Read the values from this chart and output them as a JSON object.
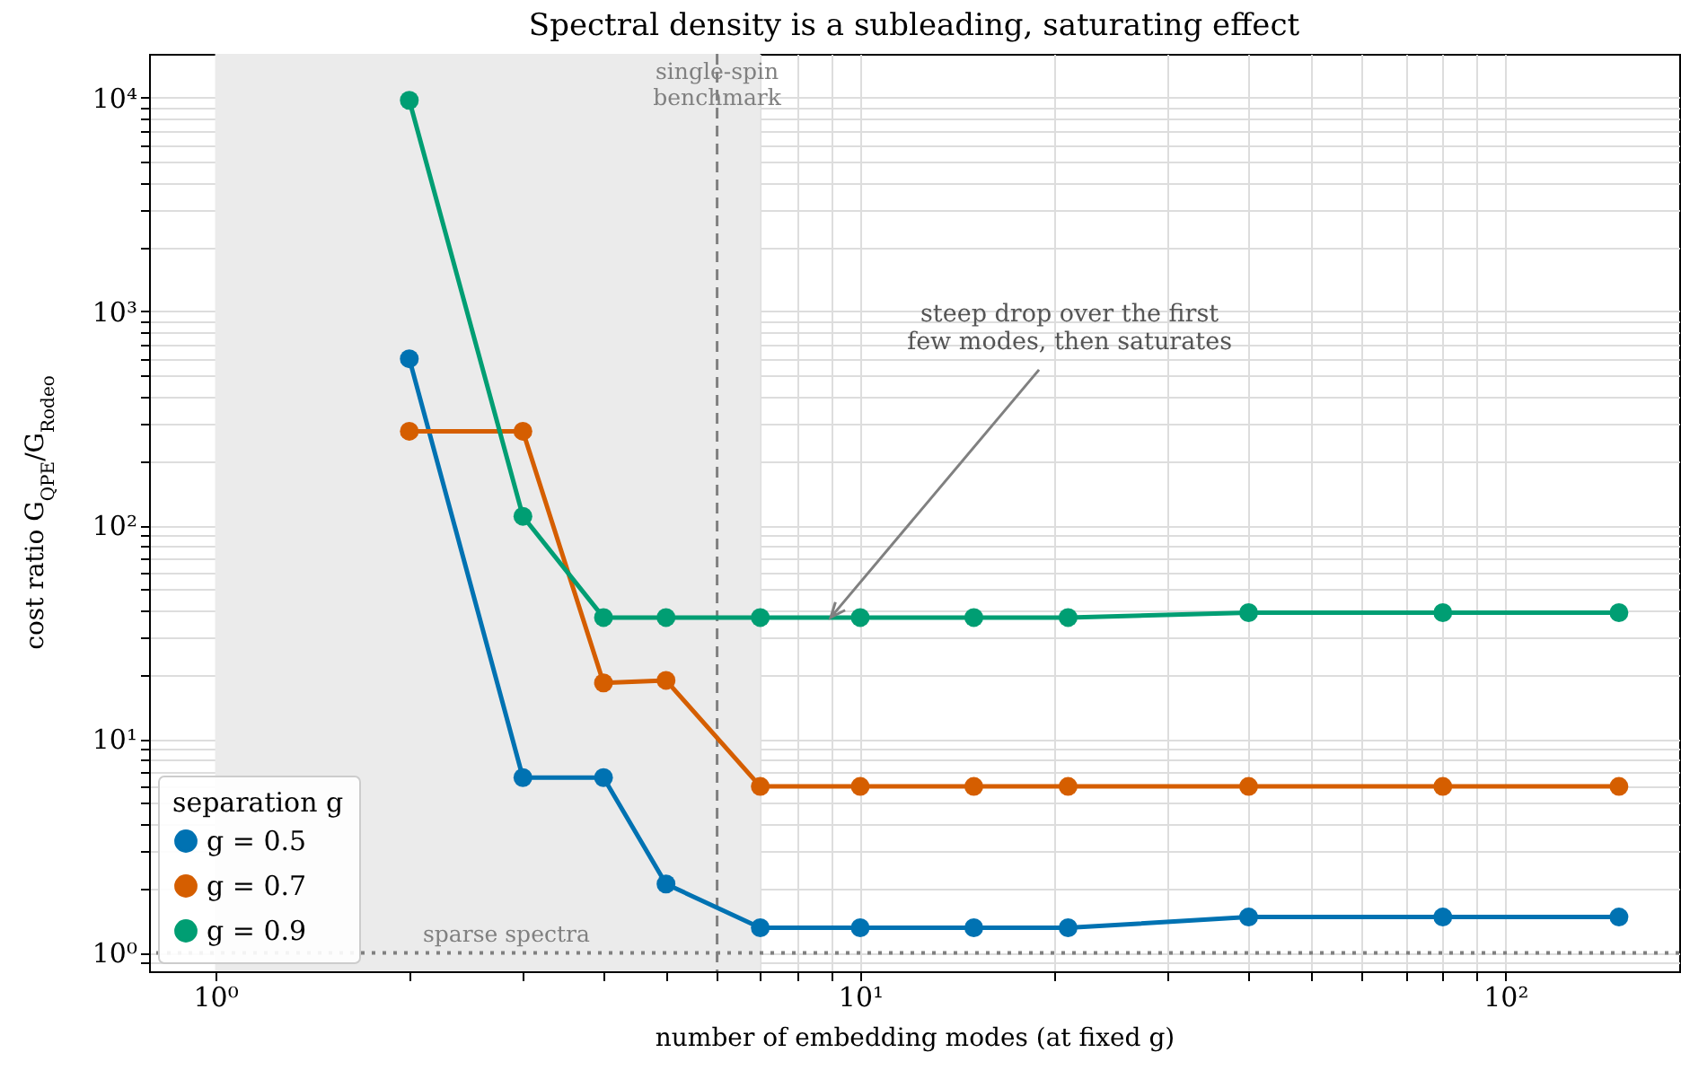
{
  "chart_data": {
    "type": "line",
    "title": "Spectral density is a subleading, saturating effect",
    "xlabel": "number of embedding modes (at fixed g)",
    "ylabel": "cost ratio G$_{QPE}$/G$_{Rodeo}$",
    "legend_title": "separation g",
    "x": [
      2,
      3,
      4,
      5,
      7,
      10,
      15,
      21,
      40,
      80,
      150
    ],
    "series": [
      {
        "name": "g = 0.5",
        "color": "#0072b2",
        "values": [
          600,
          6.6,
          6.6,
          2.1,
          1.31,
          1.31,
          1.31,
          1.31,
          1.47,
          1.47,
          1.47
        ]
      },
      {
        "name": "g = 0.7",
        "color": "#d55e00",
        "values": [
          275,
          275,
          18.3,
          18.8,
          6.0,
          6.0,
          6.0,
          6.0,
          6.0,
          6.0,
          6.0
        ]
      },
      {
        "name": "g = 0.9",
        "color": "#009e73",
        "values": [
          9700,
          110,
          37,
          37,
          37,
          37,
          37,
          37,
          39,
          39,
          39
        ]
      }
    ],
    "log": "xy",
    "xlim": [
      0.79,
      186
    ],
    "ylim": [
      0.82,
      16000
    ],
    "xticks": [
      {
        "value": 1,
        "label": "10⁰"
      },
      {
        "value": 2,
        "label": null
      },
      {
        "value": 3,
        "label": null
      },
      {
        "value": 4,
        "label": null
      },
      {
        "value": 5,
        "label": null
      },
      {
        "value": 6,
        "label": null
      },
      {
        "value": 7,
        "label": null
      },
      {
        "value": 8,
        "label": null
      },
      {
        "value": 9,
        "label": null
      },
      {
        "value": 10,
        "label": "10¹"
      },
      {
        "value": 20,
        "label": null
      },
      {
        "value": 30,
        "label": null
      },
      {
        "value": 40,
        "label": null
      },
      {
        "value": 50,
        "label": null
      },
      {
        "value": 60,
        "label": null
      },
      {
        "value": 70,
        "label": null
      },
      {
        "value": 80,
        "label": null
      },
      {
        "value": 90,
        "label": null
      },
      {
        "value": 100,
        "label": "10²"
      }
    ],
    "yticks": [
      {
        "value": 0.9,
        "label": null
      },
      {
        "value": 1,
        "label": "10⁰"
      },
      {
        "value": 2,
        "label": null
      },
      {
        "value": 3,
        "label": null
      },
      {
        "value": 4,
        "label": null
      },
      {
        "value": 5,
        "label": null
      },
      {
        "value": 6,
        "label": null
      },
      {
        "value": 7,
        "label": null
      },
      {
        "value": 8,
        "label": null
      },
      {
        "value": 9,
        "label": null
      },
      {
        "value": 10,
        "label": "10¹"
      },
      {
        "value": 20,
        "label": null
      },
      {
        "value": 30,
        "label": null
      },
      {
        "value": 40,
        "label": null
      },
      {
        "value": 50,
        "label": null
      },
      {
        "value": 60,
        "label": null
      },
      {
        "value": 70,
        "label": null
      },
      {
        "value": 80,
        "label": null
      },
      {
        "value": 90,
        "label": null
      },
      {
        "value": 100,
        "label": "10²"
      },
      {
        "value": 200,
        "label": null
      },
      {
        "value": 300,
        "label": null
      },
      {
        "value": 400,
        "label": null
      },
      {
        "value": 500,
        "label": null
      },
      {
        "value": 600,
        "label": null
      },
      {
        "value": 700,
        "label": null
      },
      {
        "value": 800,
        "label": null
      },
      {
        "value": 900,
        "label": null
      },
      {
        "value": 1000,
        "label": "10³"
      },
      {
        "value": 2000,
        "label": null
      },
      {
        "value": 3000,
        "label": null
      },
      {
        "value": 4000,
        "label": null
      },
      {
        "value": 5000,
        "label": null
      },
      {
        "value": 6000,
        "label": null
      },
      {
        "value": 7000,
        "label": null
      },
      {
        "value": 8000,
        "label": null
      },
      {
        "value": 9000,
        "label": null
      },
      {
        "value": 10000,
        "label": "10⁴"
      }
    ],
    "grid": true,
    "legend": "bottom left",
    "marker": "circle",
    "line_style": "solid",
    "bands": [
      {
        "axis": "x",
        "from": 1,
        "to": 7,
        "color": "#ebebeb"
      }
    ],
    "ref_lines": [
      {
        "axis": "x",
        "value": 6,
        "label": "single-spin\nbenchmark",
        "color": "#808080",
        "line_style": "dashed"
      },
      {
        "axis": "y",
        "value": 1,
        "label": "sparse spectra",
        "color": "#808080",
        "line_style": "dotted"
      }
    ],
    "annotations": [
      {
        "text": "steep drop over the first\nfew modes, then saturates",
        "x": 9,
        "y": 37
      }
    ]
  }
}
